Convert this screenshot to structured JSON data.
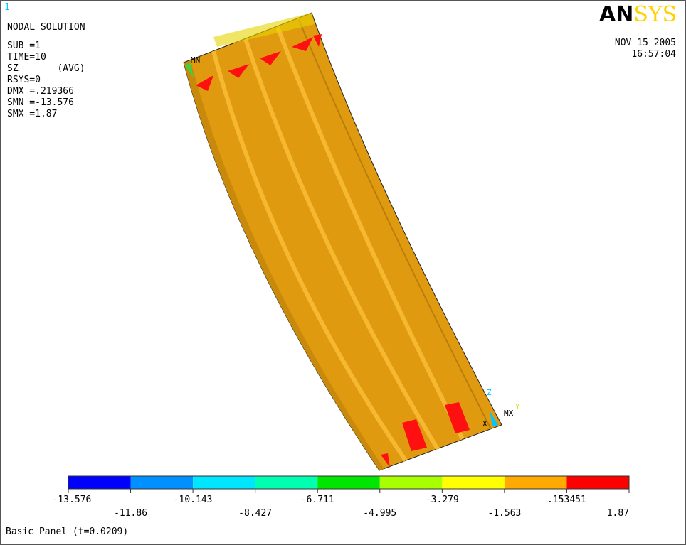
{
  "window": {
    "number": "1"
  },
  "info": {
    "lines": [
      "NODAL SOLUTION",
      "SUB =1",
      "TIME=10",
      "SZ       (AVG)",
      "RSYS=0",
      "DMX =.219366",
      "SMN =-13.576",
      "SMX =1.87"
    ]
  },
  "logo": {
    "left": "AN",
    "right": "SYS"
  },
  "stamp": {
    "date": "NOV 15 2005",
    "time": "16:57:04"
  },
  "markers": {
    "min": "MN",
    "max": "MX",
    "x": "X",
    "y": "Y",
    "z": "Z"
  },
  "colorbar": {
    "colors": [
      "#0000ff",
      "#0090ff",
      "#00e6ff",
      "#00ffb0",
      "#00e600",
      "#a8ff00",
      "#ffff00",
      "#ffaa00",
      "#ff0000"
    ],
    "labels": [
      "-13.576",
      "-11.86",
      "-10.143",
      "-8.427",
      "-6.711",
      "-4.995",
      "-3.279",
      "-1.563",
      ".153451",
      "1.87"
    ]
  },
  "footer": {
    "title": "Basic Panel (t=0.0209)"
  }
}
